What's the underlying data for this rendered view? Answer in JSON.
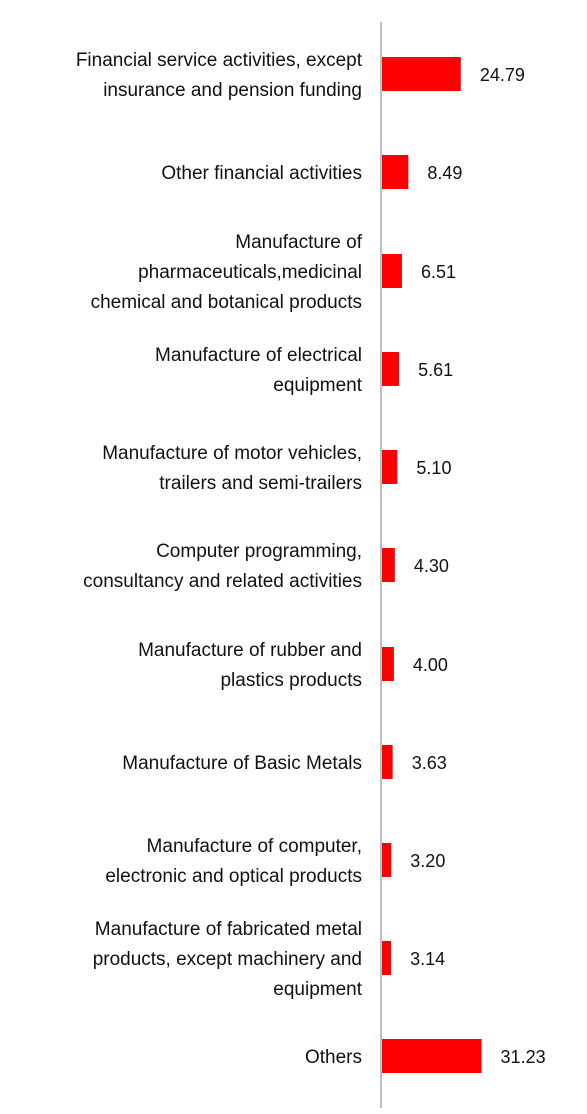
{
  "colors": {
    "bar": "#ff0000",
    "axis": "#bfbfbf",
    "text": "#111111"
  },
  "chart_data": {
    "type": "bar",
    "orientation": "horizontal",
    "title": "",
    "xlabel": "",
    "ylabel": "",
    "xlim": [
      0,
      32
    ],
    "grid": false,
    "legend": "none",
    "categories": [
      [
        "Financial service activities, except",
        "insurance and pension funding"
      ],
      [
        "Other financial activities"
      ],
      [
        "Manufacture of",
        "pharmaceuticals,medicinal",
        "chemical and botanical products"
      ],
      [
        "Manufacture of electrical",
        "equipment"
      ],
      [
        "Manufacture of motor vehicles,",
        "trailers and semi-trailers"
      ],
      [
        "Computer programming,",
        "consultancy and related activities"
      ],
      [
        "Manufacture of rubber and",
        "plastics products"
      ],
      [
        "Manufacture of Basic Metals"
      ],
      [
        "Manufacture of computer,",
        "electronic and optical products"
      ],
      [
        "Manufacture of fabricated metal",
        "products, except machinery and",
        "equipment"
      ],
      [
        "Others"
      ]
    ],
    "values": [
      24.79,
      8.49,
      6.51,
      5.61,
      5.1,
      4.3,
      4.0,
      3.63,
      3.2,
      3.14,
      31.23
    ],
    "value_labels": [
      "24.79",
      "8.49",
      "6.51",
      "5.61",
      "5.10",
      "4.30",
      "4.00",
      "3.63",
      "3.20",
      "3.14",
      "31.23"
    ]
  }
}
